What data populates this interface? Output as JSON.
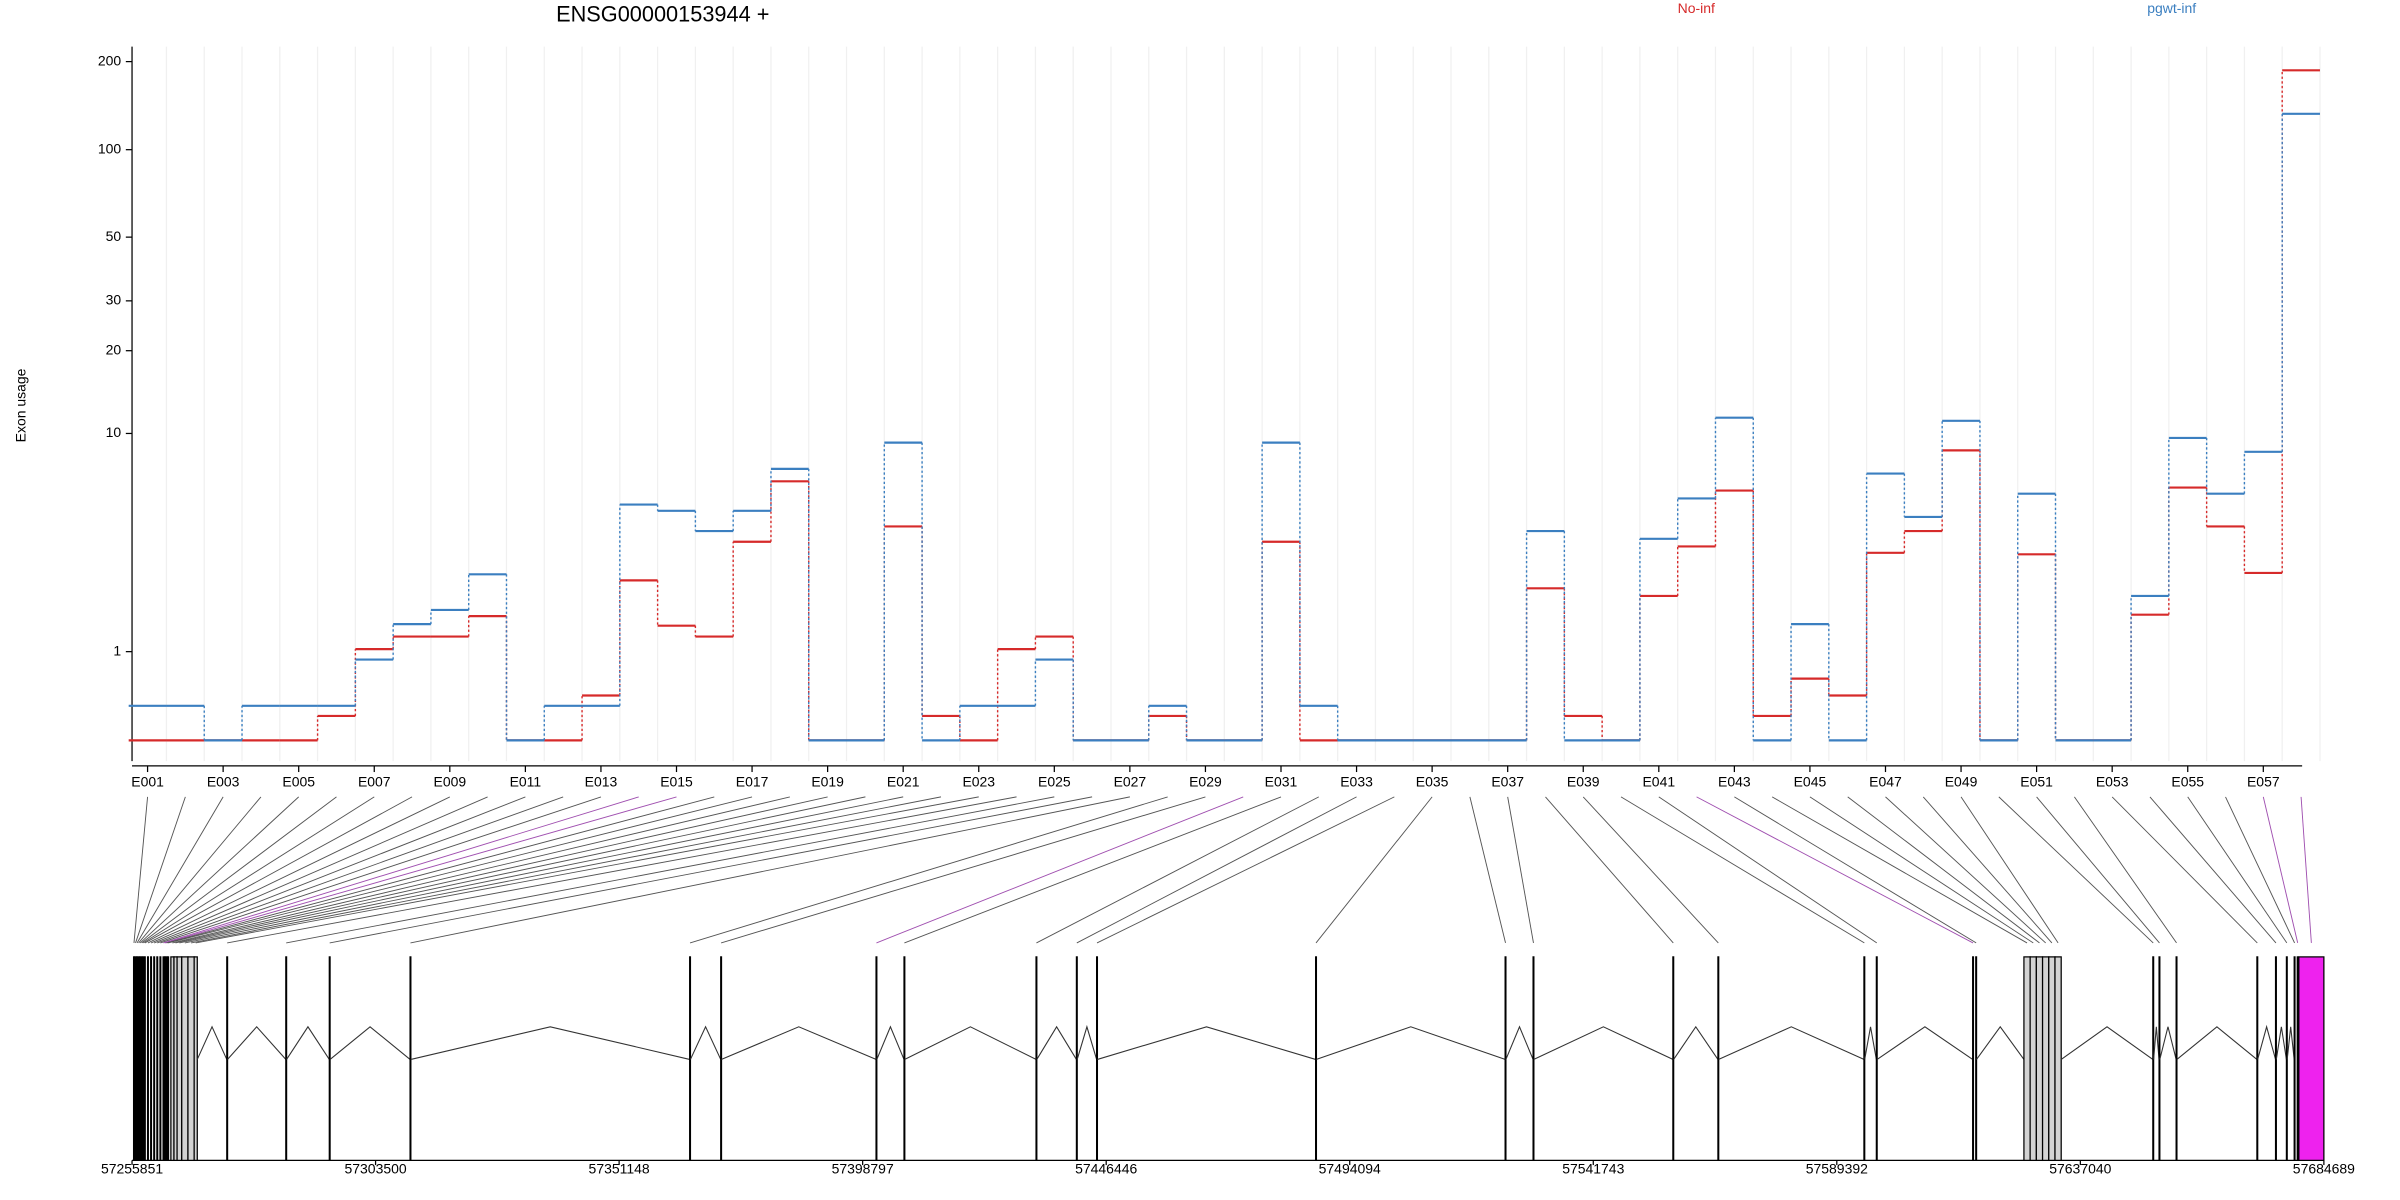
{
  "chart_data": {
    "type": "line",
    "title": "ENSG00000153944 +",
    "y_label": "Exon usage",
    "yscale": "log1p",
    "ylim": [
      -0.15,
      225
    ],
    "yticks": [
      1,
      10,
      20,
      30,
      50,
      100,
      200
    ],
    "grid": true,
    "categories": [
      "E001",
      null,
      "E003",
      null,
      "E005",
      null,
      "E007",
      null,
      "E009",
      null,
      "E011",
      null,
      "E013",
      null,
      "E015",
      null,
      "E017",
      null,
      "E019",
      null,
      "E021",
      null,
      "E023",
      null,
      "E025",
      null,
      "E027",
      null,
      "E029",
      null,
      "E031",
      null,
      "E033",
      null,
      "E035",
      null,
      "E037",
      null,
      "E039",
      null,
      "E041",
      null,
      "E043",
      null,
      "E045",
      null,
      "E047",
      null,
      "E049",
      null,
      "E051",
      null,
      "E053",
      null,
      "E055",
      null,
      "E057",
      null
    ],
    "series": [
      {
        "name": "No-inf",
        "color": "#d62a2a",
        "values": [
          0,
          0,
          0,
          0,
          0,
          0.21,
          1.04,
          1.25,
          1.25,
          1.64,
          0,
          0,
          0.42,
          2.49,
          1.45,
          1.25,
          3.72,
          6.57,
          0,
          0,
          4.32,
          0.21,
          0,
          1.04,
          1.25,
          0,
          0,
          0.21,
          0,
          0,
          3.72,
          0,
          0,
          0,
          0,
          0,
          0,
          2.28,
          0.21,
          0,
          2.09,
          3.55,
          6.04,
          0.21,
          0.62,
          0.42,
          3.33,
          4.13,
          8.64,
          0,
          3.28,
          0,
          0,
          1.67,
          6.21,
          4.32,
          2.7,
          186.8
        ]
      },
      {
        "name": "pgwt-inf",
        "color": "#3b7fc0",
        "values": [
          0.31,
          0.31,
          0,
          0.31,
          0.31,
          0.31,
          0.88,
          1.48,
          1.77,
          2.66,
          0,
          0.31,
          0.31,
          5.31,
          5.01,
          4.13,
          5.01,
          7.34,
          0,
          0,
          9.24,
          0,
          0.31,
          0.31,
          0.88,
          0,
          0,
          0.31,
          0,
          0,
          9.24,
          0.31,
          0,
          0,
          0,
          0,
          0,
          4.13,
          0,
          0,
          3.83,
          5.62,
          11.44,
          0,
          1.48,
          0,
          7.04,
          4.73,
          11.14,
          0,
          5.87,
          0,
          0,
          2.09,
          9.62,
          5.87,
          8.53,
          132.7
        ]
      }
    ],
    "gene_model": {
      "xlim": [
        57255851,
        57684689
      ],
      "xticks": [
        57255851,
        57303500,
        57351148,
        57398797,
        57446446,
        57494094,
        57541743,
        57589392,
        57637040,
        57684689
      ],
      "exon_fill": "#d3d3d3",
      "significant_fill": "#ee22ee",
      "significant_line": "#a050b0",
      "exons": [
        [
          57256155,
          57256305
        ],
        [
          57256459,
          57256609
        ],
        [
          57256763,
          57256913
        ],
        [
          57257067,
          57257217
        ],
        [
          57257371,
          57257521
        ],
        [
          57257674,
          57257824
        ],
        [
          57257978,
          57258128
        ],
        [
          57258282,
          57258432
        ],
        [
          57258890,
          57259040
        ],
        [
          57259498,
          57259648
        ],
        [
          57260106,
          57260256
        ],
        [
          57260713,
          57260863
        ],
        [
          57261321,
          57261471
        ],
        [
          57261929,
          57262079
        ],
        [
          57262233,
          57262383
        ],
        [
          57262537,
          57262687
        ],
        [
          57262841,
          57262991
        ],
        [
          57263449,
          57264056
        ],
        [
          57264056,
          57264664
        ],
        [
          57264664,
          57265576
        ],
        [
          57265576,
          57266791
        ],
        [
          57266791,
          57268007
        ],
        [
          57268007,
          57268615
        ],
        [
          57274389,
          57274539
        ],
        [
          57285937,
          57286087
        ],
        [
          57294446,
          57294596
        ],
        [
          57310249,
          57310399
        ],
        [
          57364951,
          57365101
        ],
        [
          57371029,
          57371179
        ],
        [
          57401419,
          57401569
        ],
        [
          57406889,
          57407039
        ],
        [
          57432721,
          57432871
        ],
        [
          57440622,
          57440772
        ],
        [
          57444573,
          57444723
        ],
        [
          57487423,
          57487573
        ],
        [
          57524499,
          57524649
        ],
        [
          57529969,
          57530119
        ],
        [
          57557320,
          57557470
        ],
        [
          57566133,
          57566283
        ],
        [
          57594700,
          57594850
        ],
        [
          57597131,
          57597281
        ],
        [
          57615973,
          57616123
        ],
        [
          57616580,
          57616730
        ],
        [
          57626001,
          57627216
        ],
        [
          57627216,
          57628432
        ],
        [
          57628432,
          57629648
        ],
        [
          57629648,
          57630863
        ],
        [
          57630863,
          57632079
        ],
        [
          57632079,
          57633295
        ],
        [
          57651225,
          57651375
        ],
        [
          57652441,
          57652591
        ],
        [
          57655783,
          57655933
        ],
        [
          57671586,
          57671736
        ],
        [
          57675233,
          57675383
        ],
        [
          57677360,
          57677510
        ],
        [
          57678880,
          57679030
        ],
        [
          57679488,
          57679638
        ],
        [
          57679792,
          57684689
        ]
      ],
      "significant": [
        false,
        false,
        false,
        false,
        false,
        false,
        false,
        false,
        false,
        false,
        false,
        false,
        false,
        true,
        true,
        false,
        false,
        false,
        false,
        false,
        false,
        false,
        false,
        false,
        false,
        false,
        false,
        false,
        false,
        true,
        false,
        false,
        false,
        false,
        false,
        false,
        false,
        false,
        false,
        false,
        false,
        true,
        false,
        false,
        false,
        false,
        false,
        false,
        false,
        false,
        false,
        false,
        false,
        false,
        false,
        false,
        true,
        true
      ]
    }
  }
}
